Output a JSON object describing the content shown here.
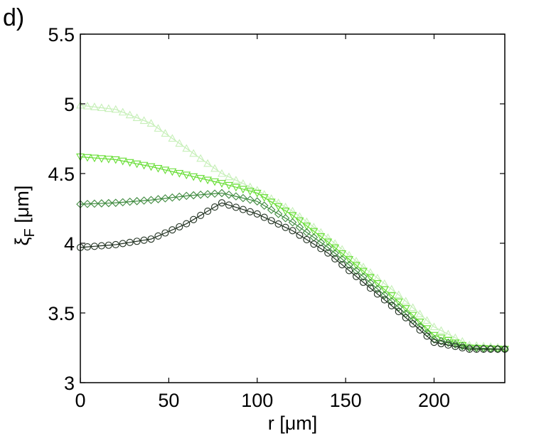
{
  "panel_label": "d)",
  "chart_data": {
    "type": "scatter",
    "title": "",
    "xlabel": "r [μm]",
    "ylabel": "ξ_F [μm]",
    "ylabel_main": "ξ",
    "ylabel_sub": "F",
    "ylabel_unit": " [μm]",
    "xlim": [
      0,
      240
    ],
    "ylim": [
      3,
      5.5
    ],
    "xticks": [
      0,
      50,
      100,
      150,
      200
    ],
    "yticks": [
      3,
      3.5,
      4,
      4.5,
      5,
      5.5
    ],
    "xtick_labels": [
      "0",
      "50",
      "100",
      "150",
      "200"
    ],
    "ytick_labels": [
      "3",
      "3.5",
      "4",
      "4.5",
      "5",
      "5.5"
    ],
    "grid": false,
    "legend": false,
    "series": [
      {
        "marker": "triangle-up",
        "color": "#c6efb8",
        "x": [
          0,
          20,
          40,
          60,
          80,
          100,
          120,
          140,
          160,
          180,
          200,
          220,
          240
        ],
        "y": [
          4.99,
          4.96,
          4.86,
          4.68,
          4.5,
          4.38,
          4.23,
          4.04,
          3.83,
          3.63,
          3.4,
          3.27,
          3.25
        ]
      },
      {
        "marker": "triangle-down",
        "color": "#66dd33",
        "x": [
          0,
          20,
          40,
          60,
          80,
          100,
          120,
          140,
          160,
          180,
          200,
          220,
          240
        ],
        "y": [
          4.62,
          4.6,
          4.55,
          4.49,
          4.43,
          4.36,
          4.2,
          4.01,
          3.8,
          3.58,
          3.34,
          3.25,
          3.24
        ]
      },
      {
        "marker": "diamond",
        "color": "#3f8a3f",
        "x": [
          0,
          20,
          40,
          60,
          80,
          100,
          120,
          140,
          160,
          180,
          200,
          220,
          240
        ],
        "y": [
          4.28,
          4.29,
          4.31,
          4.34,
          4.36,
          4.3,
          4.15,
          3.97,
          3.76,
          3.54,
          3.31,
          3.25,
          3.24
        ]
      },
      {
        "marker": "circle",
        "color": "#1f2f1f",
        "x": [
          0,
          20,
          40,
          60,
          80,
          100,
          120,
          140,
          160,
          180,
          200,
          220,
          240
        ],
        "y": [
          3.97,
          3.99,
          4.03,
          4.14,
          4.29,
          4.21,
          4.09,
          3.93,
          3.72,
          3.51,
          3.29,
          3.24,
          3.24
        ]
      }
    ]
  }
}
